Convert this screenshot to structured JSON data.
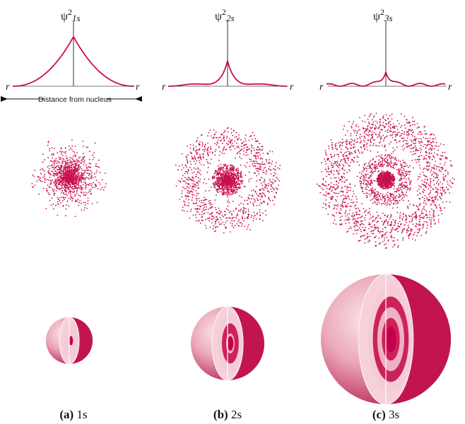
{
  "colors": {
    "accent": "#c8104f",
    "light": "#f3c0cc",
    "mid": "#e06888"
  },
  "plots": [
    {
      "id": "1s",
      "psi": "ψ",
      "exp": "2",
      "sub": "1s",
      "r_left": "r",
      "r_right": "r",
      "nodes": 0
    },
    {
      "id": "2s",
      "psi": "ψ",
      "exp": "2",
      "sub": "2s",
      "r_left": "r",
      "r_right": "r",
      "nodes": 1
    },
    {
      "id": "3s",
      "psi": "ψ",
      "exp": "2",
      "sub": "3s",
      "r_left": "r",
      "r_right": "r",
      "nodes": 2
    }
  ],
  "distance_label": "Distance from nucleus",
  "captions": [
    {
      "label": "(a)",
      "orbital": "1s"
    },
    {
      "label": "(b)",
      "orbital": "2s"
    },
    {
      "label": "(c)",
      "orbital": "3s"
    }
  ]
}
